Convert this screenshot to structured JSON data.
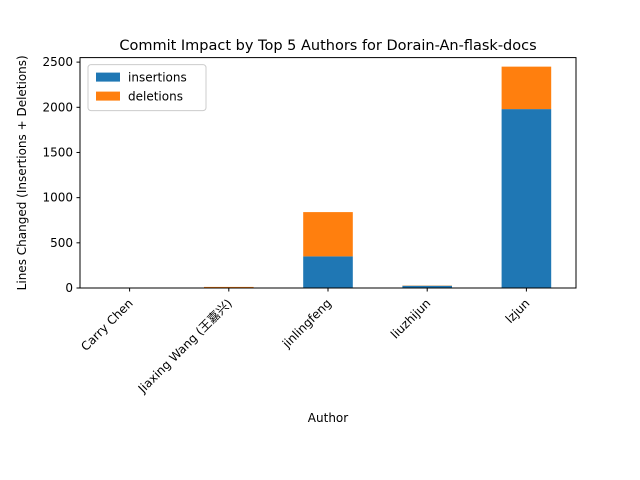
{
  "chart_data": {
    "type": "bar",
    "stacked": true,
    "title": "Commit Impact by Top 5 Authors for Dorain-An-flask-docs",
    "xlabel": "Author",
    "ylabel": "Lines Changed (Insertions + Deletions)",
    "categories": [
      "Carry Chen",
      "Jiaxing Wang (王嘉兴)",
      "jinlingfeng",
      "liuzhijun",
      "lzjun"
    ],
    "series": [
      {
        "name": "insertions",
        "color": "#1f77b4",
        "values": [
          2,
          4,
          350,
          25,
          1980
        ]
      },
      {
        "name": "deletions",
        "color": "#ff7f0e",
        "values": [
          1,
          8,
          490,
          3,
          470
        ]
      }
    ],
    "ylim": [
      0,
      2550
    ],
    "yticks": [
      0,
      500,
      1000,
      1500,
      2000,
      2500
    ],
    "grid": false,
    "legend": "top-left"
  }
}
